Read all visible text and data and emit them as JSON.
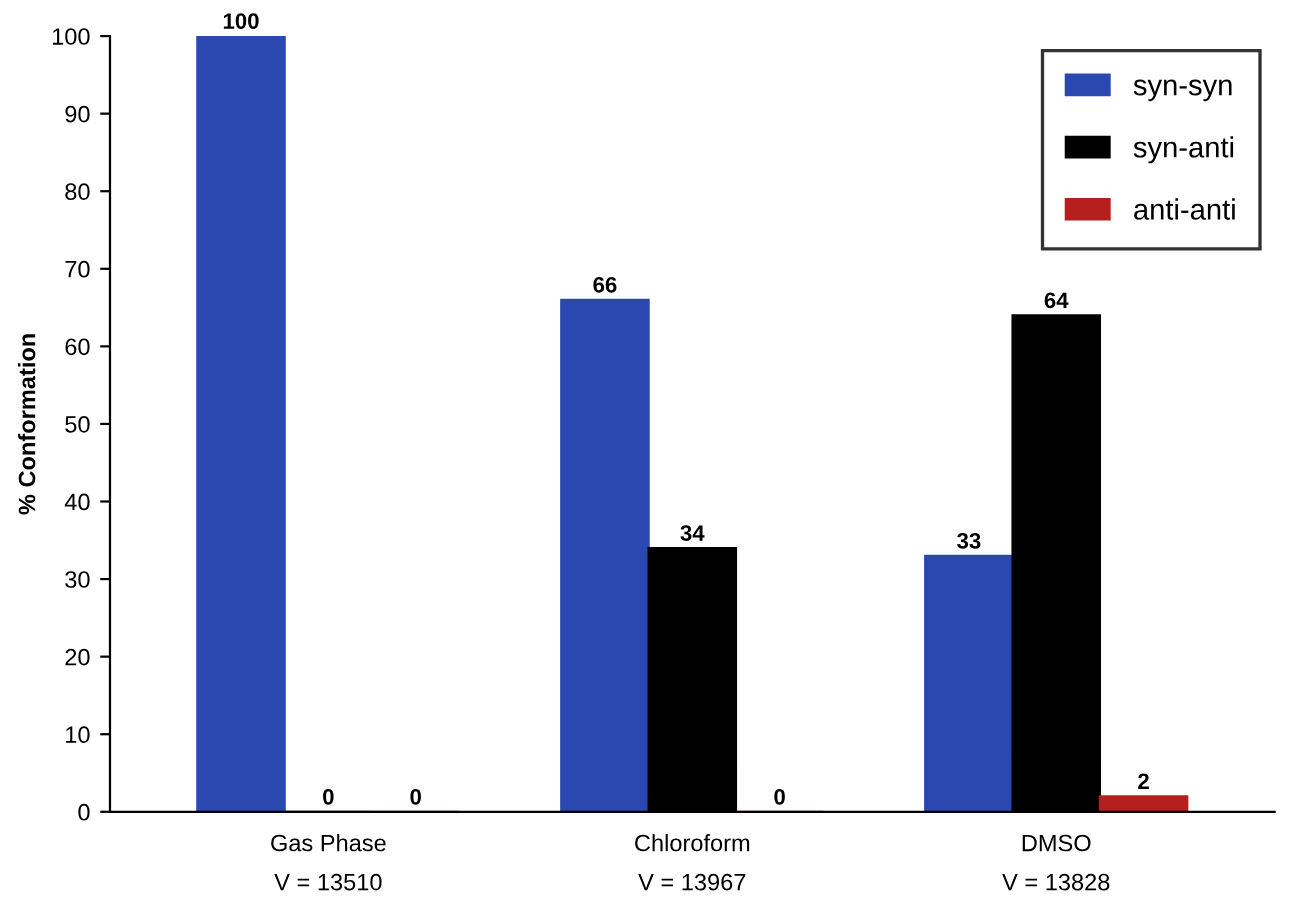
{
  "chart_data": {
    "type": "bar",
    "ylabel": "% Conformation",
    "categories": [
      "Gas Phase\nV = 13510",
      "Chloroform\nV = 13967",
      "DMSO\nV = 13828"
    ],
    "series": [
      {
        "name": "syn-syn",
        "color": "#2a48b0",
        "values": [
          100,
          66,
          33
        ]
      },
      {
        "name": "syn-anti",
        "color": "#000000",
        "values": [
          0,
          34,
          64
        ]
      },
      {
        "name": "anti-anti",
        "color": "#b5201e",
        "values": [
          0,
          0,
          2
        ]
      }
    ],
    "ylim": [
      0,
      100
    ],
    "yticks": [
      0,
      10,
      20,
      30,
      40,
      50,
      60,
      70,
      80,
      90,
      100
    ],
    "grid": false,
    "legend": "top right",
    "data_labels": true
  }
}
